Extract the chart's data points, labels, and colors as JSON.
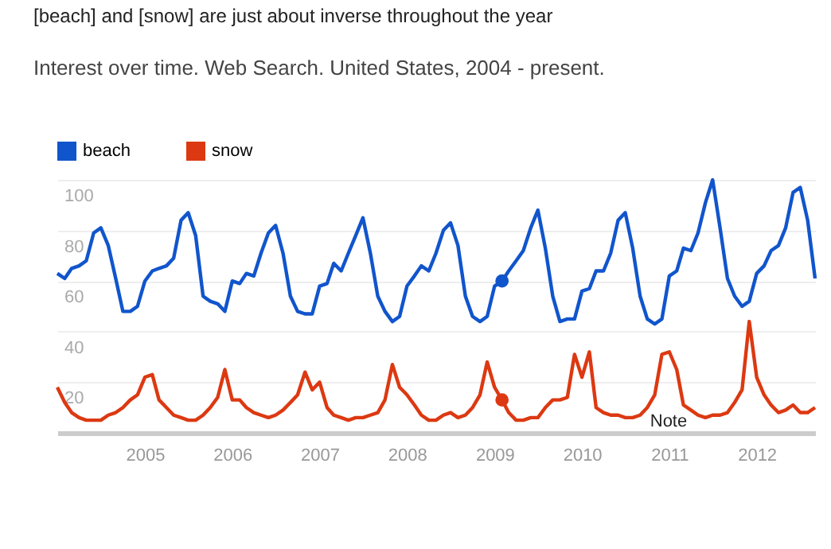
{
  "chart_data": {
    "type": "line",
    "title": "[beach] and [snow] are just about inverse throughout the year",
    "subtitle": "Interest over time. Web Search. United States, 2004 - present.",
    "x": [
      "2004-01",
      "2004-02",
      "2004-03",
      "2004-04",
      "2004-05",
      "2004-06",
      "2004-07",
      "2004-08",
      "2004-09",
      "2004-10",
      "2004-11",
      "2004-12",
      "2005-01",
      "2005-02",
      "2005-03",
      "2005-04",
      "2005-05",
      "2005-06",
      "2005-07",
      "2005-08",
      "2005-09",
      "2005-10",
      "2005-11",
      "2005-12",
      "2006-01",
      "2006-02",
      "2006-03",
      "2006-04",
      "2006-05",
      "2006-06",
      "2006-07",
      "2006-08",
      "2006-09",
      "2006-10",
      "2006-11",
      "2006-12",
      "2007-01",
      "2007-02",
      "2007-03",
      "2007-04",
      "2007-05",
      "2007-06",
      "2007-07",
      "2007-08",
      "2007-09",
      "2007-10",
      "2007-11",
      "2007-12",
      "2008-01",
      "2008-02",
      "2008-03",
      "2008-04",
      "2008-05",
      "2008-06",
      "2008-07",
      "2008-08",
      "2008-09",
      "2008-10",
      "2008-11",
      "2008-12",
      "2009-01",
      "2009-02",
      "2009-03",
      "2009-04",
      "2009-05",
      "2009-06",
      "2009-07",
      "2009-08",
      "2009-09",
      "2009-10",
      "2009-11",
      "2009-12",
      "2010-01",
      "2010-02",
      "2010-03",
      "2010-04",
      "2010-05",
      "2010-06",
      "2010-07",
      "2010-08",
      "2010-09",
      "2010-10",
      "2010-11",
      "2010-12",
      "2011-01",
      "2011-02",
      "2011-03",
      "2011-04",
      "2011-05",
      "2011-06",
      "2011-07",
      "2011-08",
      "2011-09",
      "2011-10",
      "2011-11",
      "2011-12",
      "2012-01",
      "2012-02",
      "2012-03",
      "2012-04",
      "2012-05",
      "2012-06",
      "2012-07",
      "2012-08",
      "2012-09"
    ],
    "series": [
      {
        "name": "beach",
        "color": "#1155cc",
        "values": [
          63,
          61,
          65,
          66,
          68,
          79,
          81,
          74,
          61,
          48,
          48,
          50,
          60,
          64,
          65,
          66,
          69,
          84,
          87,
          78,
          54,
          52,
          51,
          48,
          60,
          59,
          63,
          62,
          71,
          79,
          82,
          71,
          54,
          48,
          47,
          47,
          58,
          59,
          67,
          64,
          71,
          78,
          85,
          71,
          54,
          48,
          44,
          46,
          58,
          62,
          66,
          64,
          71,
          80,
          83,
          74,
          54,
          46,
          44,
          46,
          58,
          60,
          64,
          68,
          72,
          81,
          88,
          73,
          54,
          44,
          45,
          45,
          56,
          57,
          64,
          64,
          71,
          84,
          87,
          73,
          54,
          45,
          43,
          45,
          62,
          64,
          73,
          72,
          79,
          91,
          100,
          81,
          61,
          54,
          50,
          52,
          63,
          66,
          72,
          74,
          81,
          95,
          97,
          84,
          61
        ]
      },
      {
        "name": "snow",
        "color": "#dc3912",
        "values": [
          18,
          12,
          8,
          6,
          5,
          5,
          5,
          7,
          8,
          10,
          13,
          15,
          22,
          23,
          13,
          10,
          7,
          6,
          5,
          5,
          7,
          10,
          14,
          25,
          13,
          13,
          10,
          8,
          7,
          6,
          7,
          9,
          12,
          15,
          24,
          17,
          20,
          10,
          7,
          6,
          5,
          6,
          6,
          7,
          8,
          13,
          27,
          18,
          15,
          11,
          7,
          5,
          5,
          7,
          8,
          6,
          7,
          10,
          15,
          28,
          18,
          13,
          8,
          5,
          5,
          6,
          6,
          10,
          13,
          13,
          14,
          31,
          22,
          32,
          10,
          8,
          7,
          7,
          6,
          6,
          7,
          10,
          15,
          31,
          32,
          25,
          11,
          9,
          7,
          6,
          7,
          7,
          8,
          12,
          17,
          44,
          22,
          15,
          11,
          8,
          9,
          11,
          8,
          8,
          10
        ]
      },
      {
        "type": "scatter",
        "color": "#1155cc",
        "x": [
          "2009-02"
        ],
        "values": [
          60
        ]
      },
      {
        "type": "scatter",
        "color": "#dc3912",
        "x": [
          "2009-02"
        ],
        "values": [
          13
        ]
      }
    ],
    "ylim": [
      0,
      100
    ],
    "yticks": [
      20,
      40,
      60,
      80,
      100
    ],
    "xlim": [
      "2004-01",
      "2012-09"
    ],
    "xticks": [
      {
        "value": "2005-01",
        "label": "2005"
      },
      {
        "value": "2006-01",
        "label": "2006"
      },
      {
        "value": "2007-01",
        "label": "2007"
      },
      {
        "value": "2008-01",
        "label": "2008"
      },
      {
        "value": "2009-01",
        "label": "2009"
      },
      {
        "value": "2010-01",
        "label": "2010"
      },
      {
        "value": "2011-01",
        "label": "2011"
      },
      {
        "value": "2012-01",
        "label": "2012"
      }
    ],
    "annotations": [
      "Note"
    ],
    "grid": "y",
    "legend": "top left"
  }
}
